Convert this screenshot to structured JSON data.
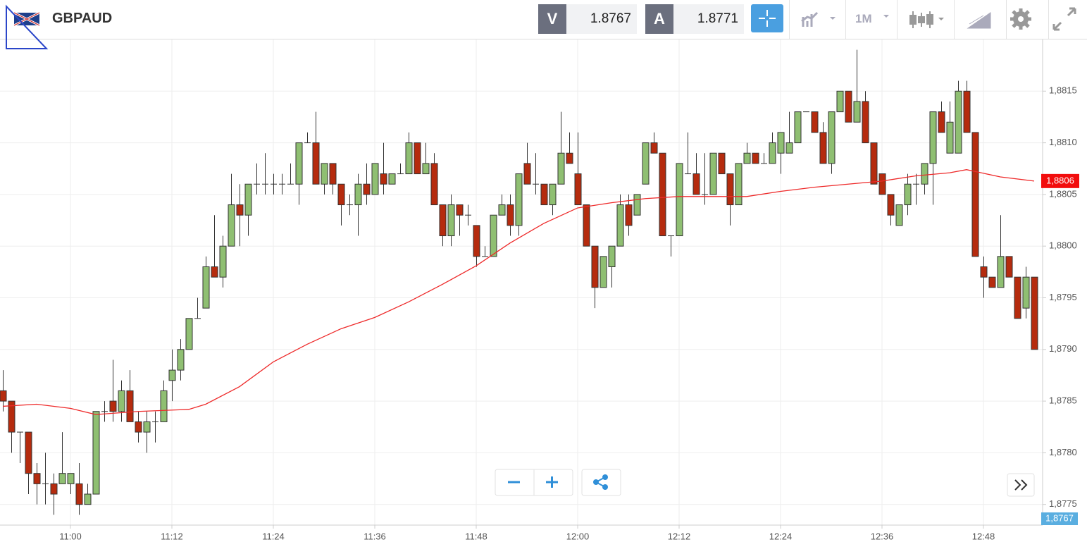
{
  "toolbar": {
    "symbol": "GBPAUD",
    "sell_label": "V",
    "sell_price": "1.8767",
    "buy_label": "A",
    "buy_price": "1.8771",
    "timeframe": "1M"
  },
  "chart_data": {
    "type": "candlestick",
    "x": [
      "10:52",
      "10:53",
      "10:54",
      "10:55",
      "10:56",
      "10:57",
      "10:58",
      "10:59",
      "11:00",
      "11:01",
      "11:02",
      "11:03",
      "11:04",
      "11:05",
      "11:06",
      "11:07",
      "11:08",
      "11:09",
      "11:10",
      "11:11",
      "11:12",
      "11:13",
      "11:14",
      "11:15",
      "11:16",
      "11:17",
      "11:18",
      "11:19",
      "11:20",
      "11:21",
      "11:22",
      "11:23",
      "11:24",
      "11:25",
      "11:26",
      "11:27",
      "11:28",
      "11:29",
      "11:30",
      "11:31",
      "11:32",
      "11:33",
      "11:34",
      "11:35",
      "11:36",
      "11:37",
      "11:38",
      "11:39",
      "11:40",
      "11:41",
      "11:42",
      "11:43",
      "11:44",
      "11:45",
      "11:46",
      "11:47",
      "11:48",
      "11:49",
      "11:50",
      "11:51",
      "11:52",
      "11:53",
      "11:54",
      "11:55",
      "11:56",
      "11:57",
      "11:58",
      "11:59",
      "12:00",
      "12:01",
      "12:02",
      "12:03",
      "12:04",
      "12:05",
      "12:06",
      "12:07",
      "12:08",
      "12:09",
      "12:10",
      "12:11",
      "12:12",
      "12:13",
      "12:14",
      "12:15",
      "12:16",
      "12:17",
      "12:18",
      "12:19",
      "12:20",
      "12:21",
      "12:22",
      "12:23",
      "12:24",
      "12:25",
      "12:26",
      "12:27",
      "12:28",
      "12:29",
      "12:30",
      "12:31",
      "12:32",
      "12:33",
      "12:34",
      "12:35",
      "12:36",
      "12:37",
      "12:38",
      "12:39",
      "12:40",
      "12:41",
      "12:42",
      "12:43",
      "12:44",
      "12:45",
      "12:46",
      "12:47",
      "12:48",
      "12:49",
      "12:50",
      "12:51",
      "12:52",
      "12:53",
      "12:54"
    ],
    "open": [
      1.8786,
      1.8785,
      1.8782,
      1.8782,
      1.8778,
      1.8777,
      1.8777,
      1.8777,
      1.8777,
      1.8777,
      1.8775,
      1.8776,
      1.8784,
      1.8785,
      1.8784,
      1.8786,
      1.8783,
      1.8782,
      1.8783,
      1.8783,
      1.8787,
      1.8788,
      1.879,
      1.8793,
      1.8794,
      1.8798,
      1.8797,
      1.88,
      1.8804,
      1.8803,
      1.8806,
      1.8806,
      1.8806,
      1.8806,
      1.8806,
      1.8806,
      1.881,
      1.881,
      1.8806,
      1.8808,
      1.8806,
      1.8804,
      1.8804,
      1.8806,
      1.8805,
      1.8807,
      1.8806,
      1.8807,
      1.8807,
      1.881,
      1.8807,
      1.8808,
      1.8804,
      1.8801,
      1.8804,
      1.8803,
      1.8802,
      1.8799,
      1.8799,
      1.8803,
      1.8804,
      1.8802,
      1.8808,
      1.8806,
      1.8806,
      1.8804,
      1.8806,
      1.8809,
      1.8807,
      1.8804,
      1.88,
      1.8796,
      1.8798,
      1.88,
      1.8804,
      1.8803,
      1.8806,
      1.881,
      1.8809,
      1.8801,
      1.8801,
      1.8807,
      1.8807,
      1.8805,
      1.8805,
      1.8809,
      1.8807,
      1.8804,
      1.8808,
      1.8809,
      1.8808,
      1.8808,
      1.8809,
      1.8809,
      1.881,
      1.8813,
      1.8813,
      1.8811,
      1.8808,
      1.8813,
      1.8815,
      1.8812,
      1.8814,
      1.881,
      1.8807,
      1.8805,
      1.8802,
      1.8804,
      1.8806,
      1.8806,
      1.8808,
      1.8813,
      1.8809,
      1.8809,
      1.8815,
      1.8811,
      1.8798,
      1.8797,
      1.8796,
      1.8799,
      1.8797,
      1.8794,
      1.8797
    ],
    "high": [
      1.8788,
      1.8785,
      1.8782,
      1.8782,
      1.8779,
      1.878,
      1.8778,
      1.8782,
      1.8778,
      1.8779,
      1.8777,
      1.8784,
      1.8785,
      1.8789,
      1.8787,
      1.8788,
      1.8784,
      1.8784,
      1.8784,
      1.8787,
      1.879,
      1.8791,
      1.8793,
      1.8795,
      1.8799,
      1.8803,
      1.8801,
      1.8807,
      1.8806,
      1.8806,
      1.8808,
      1.8809,
      1.8807,
      1.8807,
      1.8808,
      1.881,
      1.8811,
      1.8813,
      1.8808,
      1.8808,
      1.8806,
      1.8805,
      1.8807,
      1.8808,
      1.8808,
      1.881,
      1.8807,
      1.8808,
      1.8811,
      1.881,
      1.881,
      1.8809,
      1.8804,
      1.8805,
      1.8804,
      1.8804,
      1.8802,
      1.88,
      1.8803,
      1.8805,
      1.8805,
      1.8807,
      1.881,
      1.8809,
      1.8806,
      1.8806,
      1.8813,
      1.8811,
      1.8811,
      1.8804,
      1.88,
      1.8799,
      1.88,
      1.8805,
      1.8805,
      1.8805,
      1.881,
      1.8811,
      1.8809,
      1.8801,
      1.8808,
      1.8811,
      1.8809,
      1.8809,
      1.8809,
      1.8809,
      1.8807,
      1.8808,
      1.881,
      1.8809,
      1.8809,
      1.8811,
      1.8811,
      1.8813,
      1.8813,
      1.8813,
      1.8813,
      1.8812,
      1.8813,
      1.8815,
      1.8815,
      1.8819,
      1.8815,
      1.881,
      1.8807,
      1.8805,
      1.8804,
      1.8807,
      1.8807,
      1.8808,
      1.8813,
      1.8814,
      1.8814,
      1.8816,
      1.8816,
      1.8811,
      1.8799,
      1.8797,
      1.8803,
      1.8799,
      1.8797,
      1.8798,
      1.8797
    ],
    "low": [
      1.8784,
      1.878,
      1.8779,
      1.8776,
      1.8775,
      1.8775,
      1.8774,
      1.8777,
      1.8776,
      1.8774,
      1.8775,
      1.8776,
      1.8783,
      1.8783,
      1.8783,
      1.8783,
      1.8781,
      1.878,
      1.8781,
      1.8783,
      1.8785,
      1.8787,
      1.879,
      1.8793,
      1.8794,
      1.8797,
      1.8796,
      1.88,
      1.88,
      1.8801,
      1.8805,
      1.8805,
      1.8805,
      1.8805,
      1.8806,
      1.8804,
      1.881,
      1.8806,
      1.8805,
      1.8805,
      1.8802,
      1.8803,
      1.8801,
      1.8804,
      1.8805,
      1.8805,
      1.8806,
      1.8807,
      1.8807,
      1.8807,
      1.8807,
      1.8804,
      1.88,
      1.88,
      1.8801,
      1.8802,
      1.8798,
      1.8799,
      1.8799,
      1.8803,
      1.8801,
      1.8801,
      1.8806,
      1.8805,
      1.8804,
      1.8803,
      1.8806,
      1.8808,
      1.8804,
      1.88,
      1.8794,
      1.8796,
      1.8796,
      1.88,
      1.8801,
      1.8803,
      1.8806,
      1.8809,
      1.8801,
      1.8799,
      1.8801,
      1.8807,
      1.8805,
      1.8804,
      1.8805,
      1.8807,
      1.8802,
      1.8804,
      1.8808,
      1.8808,
      1.8808,
      1.8808,
      1.8807,
      1.8809,
      1.881,
      1.8813,
      1.8811,
      1.8808,
      1.8807,
      1.8813,
      1.8812,
      1.8812,
      1.881,
      1.8806,
      1.8805,
      1.8802,
      1.8802,
      1.8803,
      1.8804,
      1.8805,
      1.8804,
      1.8811,
      1.8809,
      1.8809,
      1.8811,
      1.8799,
      1.8795,
      1.8796,
      1.8796,
      1.8797,
      1.8793,
      1.8793,
      1.879
    ],
    "close": [
      1.8785,
      1.8782,
      1.8782,
      1.8778,
      1.8777,
      1.8777,
      1.8776,
      1.8778,
      1.8778,
      1.8775,
      1.8776,
      1.8784,
      1.8784,
      1.8784,
      1.8786,
      1.8783,
      1.8782,
      1.8783,
      1.8783,
      1.8786,
      1.8788,
      1.879,
      1.8793,
      1.8793,
      1.8798,
      1.8797,
      1.88,
      1.8804,
      1.8803,
      1.8806,
      1.8806,
      1.8806,
      1.8806,
      1.8806,
      1.8806,
      1.881,
      1.881,
      1.8806,
      1.8808,
      1.8806,
      1.8804,
      1.8804,
      1.8806,
      1.8805,
      1.8808,
      1.8806,
      1.8807,
      1.8807,
      1.881,
      1.8807,
      1.8808,
      1.8804,
      1.8801,
      1.8804,
      1.8803,
      1.8803,
      1.8799,
      1.8799,
      1.8803,
      1.8804,
      1.8802,
      1.8807,
      1.8806,
      1.8806,
      1.8804,
      1.8806,
      1.8809,
      1.8808,
      1.8804,
      1.88,
      1.8796,
      1.8799,
      1.88,
      1.8804,
      1.8802,
      1.8805,
      1.881,
      1.8809,
      1.8801,
      1.8801,
      1.8808,
      1.8807,
      1.8805,
      1.8805,
      1.8809,
      1.8807,
      1.8804,
      1.8808,
      1.8809,
      1.8808,
      1.8808,
      1.881,
      1.8811,
      1.881,
      1.8813,
      1.8813,
      1.8811,
      1.8808,
      1.8813,
      1.8815,
      1.8812,
      1.8814,
      1.881,
      1.8806,
      1.8805,
      1.8803,
      1.8804,
      1.8806,
      1.8806,
      1.8808,
      1.8813,
      1.8811,
      1.8812,
      1.8815,
      1.8811,
      1.8799,
      1.8797,
      1.8796,
      1.8799,
      1.8797,
      1.8793,
      1.8797,
      1.879
    ],
    "up_color": "#8fbf72",
    "down_color": "#b52b0e",
    "moving_average": {
      "color": "#ee2a2a",
      "x": [
        "10:52",
        "10:56",
        "11:00",
        "11:03",
        "11:08",
        "11:14",
        "11:16",
        "11:20",
        "11:24",
        "11:28",
        "11:32",
        "11:36",
        "11:40",
        "11:44",
        "11:48",
        "11:52",
        "11:56",
        "12:00",
        "12:04",
        "12:08",
        "12:12",
        "12:20",
        "12:24",
        "12:28",
        "12:32",
        "12:36",
        "12:40",
        "12:44",
        "12:46",
        "12:50",
        "12:54"
      ],
      "values": [
        1.87845,
        1.87847,
        1.87843,
        1.87837,
        1.8784,
        1.87842,
        1.87847,
        1.87864,
        1.87888,
        1.87905,
        1.8792,
        1.87931,
        1.87946,
        1.87963,
        1.87981,
        1.88003,
        1.88022,
        1.88037,
        1.88042,
        1.88046,
        1.88048,
        1.88048,
        1.88053,
        1.88057,
        1.8806,
        1.88063,
        1.88068,
        1.88071,
        1.88074,
        1.88067,
        1.88063
      ],
      "tag": "1,8806"
    },
    "bid_tag": "1,8767",
    "ylim": [
      1.8773,
      1.882
    ],
    "yticks": [
      {
        "value": 1.8775,
        "label": "1,8775"
      },
      {
        "value": 1.878,
        "label": "1,8780"
      },
      {
        "value": 1.8785,
        "label": "1,8785"
      },
      {
        "value": 1.879,
        "label": "1,8790"
      },
      {
        "value": 1.8795,
        "label": "1,8795"
      },
      {
        "value": 1.88,
        "label": "1,8800"
      },
      {
        "value": 1.8805,
        "label": "1,8805"
      },
      {
        "value": 1.881,
        "label": "1,8810"
      },
      {
        "value": 1.8815,
        "label": "1,8815"
      }
    ],
    "xticks": [
      "11:00",
      "11:12",
      "11:24",
      "11:36",
      "11:48",
      "12:00",
      "12:12",
      "12:24",
      "12:36",
      "12:48"
    ],
    "grid": true
  }
}
